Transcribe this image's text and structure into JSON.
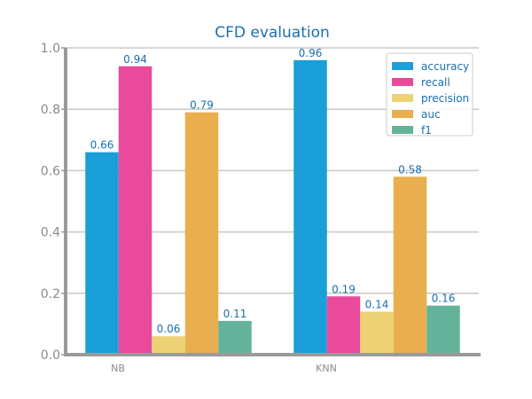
{
  "chart_data": {
    "type": "bar",
    "title": "CFD evaluation",
    "xlabel": "",
    "ylabel": "",
    "categories": [
      "NB",
      "KNN"
    ],
    "ylim": [
      0,
      1.0
    ],
    "yticks": [
      "0.0",
      "0.2",
      "0.4",
      "0.6",
      "0.8",
      "1.0"
    ],
    "grid": true,
    "legend_position": "top-right",
    "series": [
      {
        "name": "accuracy",
        "values": [
          0.66,
          0.96
        ],
        "labels": [
          "0.66",
          "0.96"
        ],
        "color": "#1a9fd9"
      },
      {
        "name": "recall",
        "values": [
          0.94,
          0.19
        ],
        "labels": [
          "0.94",
          "0.19"
        ],
        "color": "#e94a9b"
      },
      {
        "name": "precision",
        "values": [
          0.06,
          0.14
        ],
        "labels": [
          "0.06",
          "0.14"
        ],
        "color": "#ecd274"
      },
      {
        "name": "auc",
        "values": [
          0.79,
          0.58
        ],
        "labels": [
          "0.79",
          "0.58"
        ],
        "color": "#e9ae4e"
      },
      {
        "name": "f1",
        "values": [
          0.11,
          0.16
        ],
        "labels": [
          "0.11",
          "0.16"
        ],
        "color": "#63b39b"
      }
    ]
  }
}
